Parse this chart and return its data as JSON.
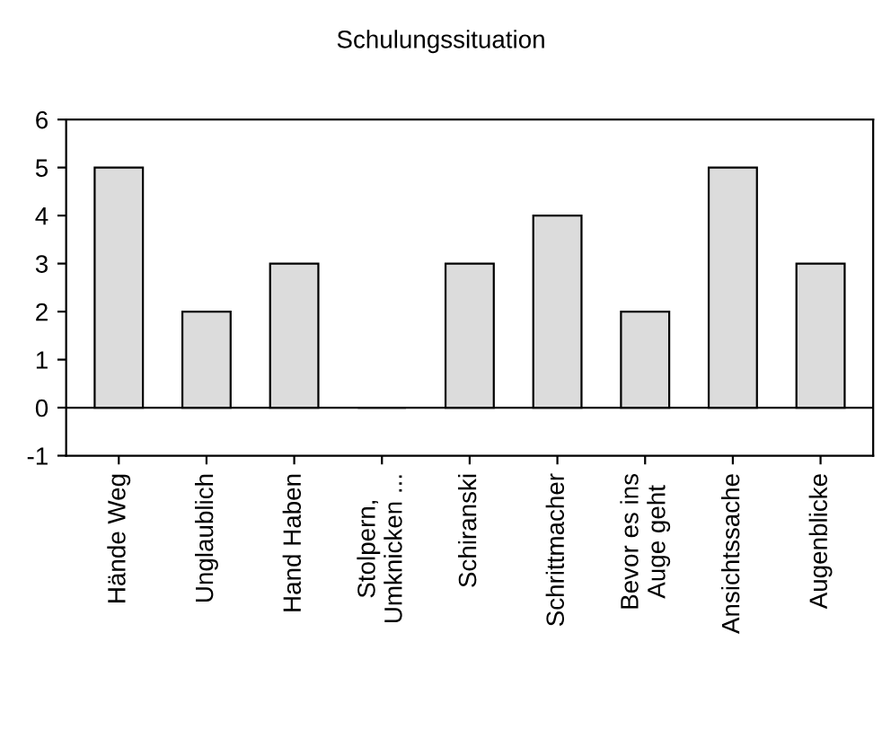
{
  "chart_data": {
    "type": "bar",
    "title": "Schulungssituation",
    "categories": [
      "Hände Weg",
      "Unglaublich",
      "Hand Haben",
      "Stolpern,\nUmknicken ...",
      "Schiranski",
      "Schrittmacher",
      "Bevor es ins\nAuge geht",
      "Ansichtssache",
      "Augenblicke"
    ],
    "values": [
      5,
      2,
      3,
      0,
      3,
      4,
      2,
      5,
      3
    ],
    "colors": [
      "#dcdcdc",
      "#dcdcdc",
      "#dcdcdc",
      "#000000",
      "#dcdcdc",
      "#dcdcdc",
      "#dcdcdc",
      "#dcdcdc",
      "#dcdcdc"
    ],
    "ylim": [
      -1,
      6
    ],
    "yticks": [
      -1,
      0,
      1,
      2,
      3,
      4,
      5,
      6
    ],
    "legend": false
  }
}
